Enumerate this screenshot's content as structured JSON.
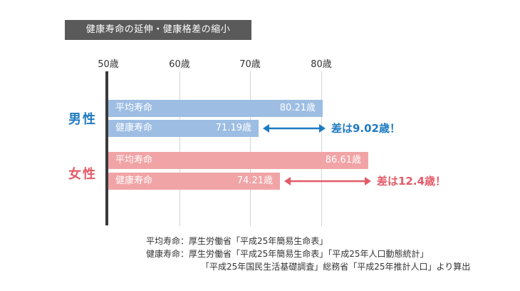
{
  "title": "健康寿命の延伸・健康格差の縮小",
  "colors": {
    "male": "#1f7bc0",
    "male_bar": "#9dbde3",
    "female": "#e35b68",
    "female_bar": "#f1a4a6"
  },
  "chart_data": {
    "type": "bar",
    "orientation": "horizontal",
    "title": "健康寿命の延伸・健康格差の縮小",
    "x_ticks": [
      "50歳",
      "60歳",
      "70歳",
      "80歳"
    ],
    "xlim": [
      50,
      86.61
    ],
    "grid": true,
    "groups": [
      {
        "name": "男性",
        "series": [
          {
            "name": "平均寿命",
            "value": 80.21,
            "label": "80.21歳"
          },
          {
            "name": "健康寿命",
            "value": 71.19,
            "label": "71.19歳"
          }
        ],
        "gap_text": "差は9.02歳！"
      },
      {
        "name": "女性",
        "series": [
          {
            "name": "平均寿命",
            "value": 86.61,
            "label": "86.61歳"
          },
          {
            "name": "健康寿命",
            "value": 74.21,
            "label": "74.21歳"
          }
        ],
        "gap_text": "差は12.4歳！"
      }
    ]
  },
  "sources": [
    "平均寿命：厚生労働省「平成25年簡易生命表」",
    "健康寿命：厚生労働省「平成25年簡易生命表」「平成25年人口動態統計」",
    "「平成25年国民生活基礎調査」総務省「平成25年推計人口」より算出"
  ]
}
